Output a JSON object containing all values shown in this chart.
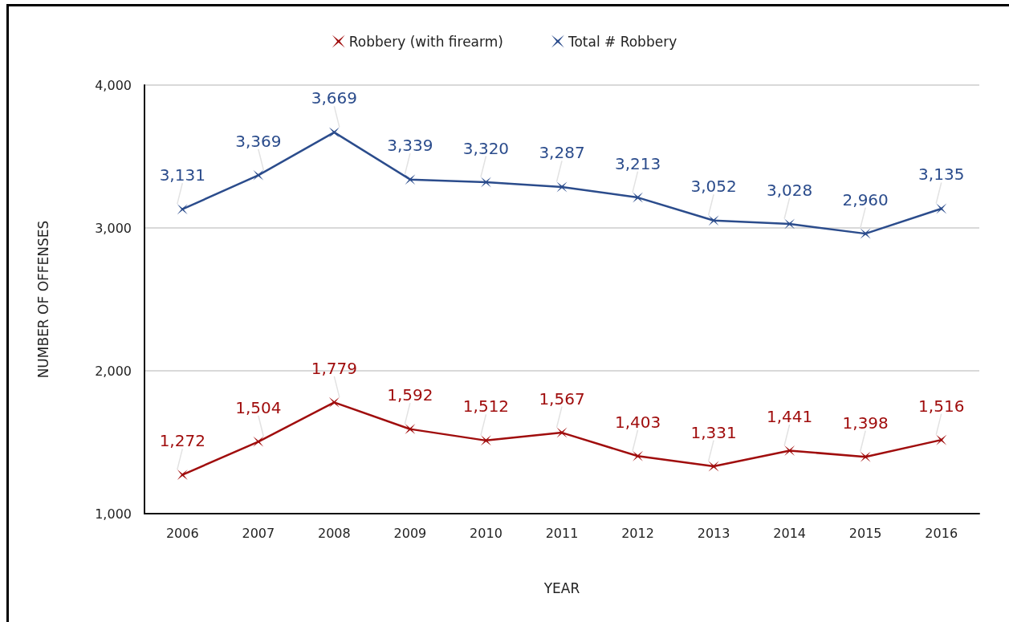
{
  "chart_data": {
    "type": "line",
    "xlabel": "YEAR",
    "ylabel": "NUMBER OF OFFENSES",
    "categories": [
      "2006",
      "2007",
      "2008",
      "2009",
      "2010",
      "2011",
      "2012",
      "2013",
      "2014",
      "2015",
      "2016"
    ],
    "series": [
      {
        "name": "Robbery (with firearm)",
        "color": "#a00d0d",
        "values": [
          1272,
          1504,
          1779,
          1592,
          1512,
          1567,
          1403,
          1331,
          1441,
          1398,
          1516
        ],
        "value_labels": [
          "1,272",
          "1,504",
          "1,779",
          "1,592",
          "1,512",
          "1,567",
          "1,403",
          "1,331",
          "1,441",
          "1,398",
          "1,516"
        ]
      },
      {
        "name": "Total # Robbery",
        "color": "#2b4c8c",
        "values": [
          3131,
          3369,
          3669,
          3339,
          3320,
          3287,
          3213,
          3052,
          3028,
          2960,
          3135
        ],
        "value_labels": [
          "3,131",
          "3,369",
          "3,669",
          "3,339",
          "3,320",
          "3,287",
          "3,213",
          "3,052",
          "3,028",
          "2,960",
          "3,135"
        ]
      }
    ],
    "ylim": [
      1000,
      4000
    ],
    "yticks": [
      {
        "value": 1000,
        "label": "1,000"
      },
      {
        "value": 2000,
        "label": "2,000"
      },
      {
        "value": 3000,
        "label": "3,000"
      },
      {
        "value": 4000,
        "label": "4,000"
      }
    ],
    "grid": "y",
    "legend": "top",
    "marker": "cross",
    "line_style": "solid"
  }
}
